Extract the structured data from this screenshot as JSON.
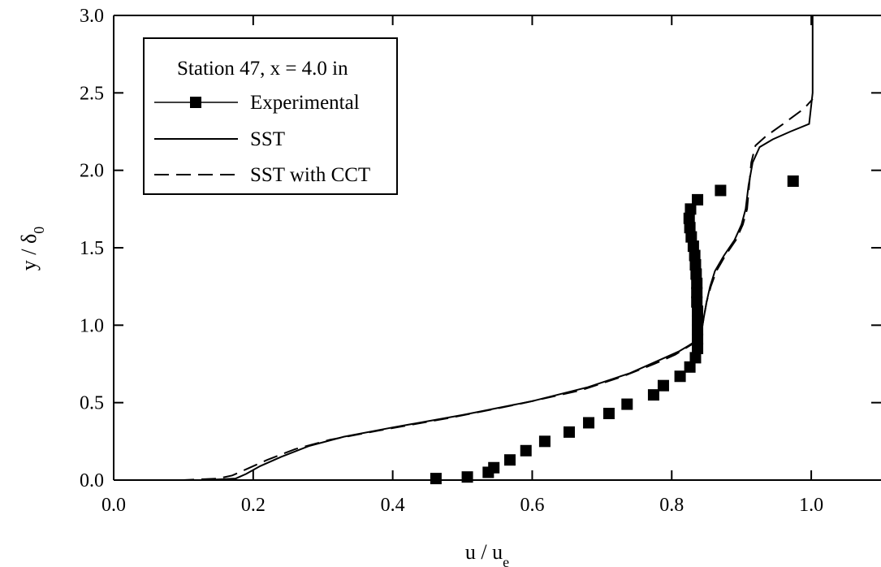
{
  "chart_data": {
    "type": "line",
    "title": "",
    "xlabel": "u / u_e",
    "ylabel": "y / δ_0",
    "xlim": [
      0.0,
      1.1
    ],
    "ylim": [
      0.0,
      3.0
    ],
    "x_ticks": [
      0.0,
      0.2,
      0.4,
      0.6,
      0.8,
      1.0
    ],
    "x_tick_labels": [
      "0.0",
      "0.2",
      "0.4",
      "0.6",
      "0.8",
      "1.0"
    ],
    "y_ticks": [
      0.0,
      0.5,
      1.0,
      1.5,
      2.0,
      2.5,
      3.0
    ],
    "y_tick_labels": [
      "0.0",
      "0.5",
      "1.0",
      "1.5",
      "2.0",
      "2.5",
      "3.0"
    ],
    "grid": false,
    "legend": {
      "placement": "top-left",
      "title": "Station 47, x = 4.0 in",
      "entries": [
        "Experimental",
        "SST",
        "SST with CCT"
      ]
    },
    "series": [
      {
        "name": "Experimental",
        "style": "square-markers",
        "points": [
          [
            0.462,
            0.01
          ],
          [
            0.507,
            0.02
          ],
          [
            0.537,
            0.05
          ],
          [
            0.545,
            0.08
          ],
          [
            0.568,
            0.13
          ],
          [
            0.591,
            0.19
          ],
          [
            0.618,
            0.25
          ],
          [
            0.653,
            0.31
          ],
          [
            0.681,
            0.37
          ],
          [
            0.71,
            0.43
          ],
          [
            0.736,
            0.49
          ],
          [
            0.774,
            0.55
          ],
          [
            0.788,
            0.61
          ],
          [
            0.812,
            0.67
          ],
          [
            0.826,
            0.73
          ],
          [
            0.834,
            0.79
          ],
          [
            0.837,
            0.85
          ],
          [
            0.837,
            0.91
          ],
          [
            0.837,
            0.97
          ],
          [
            0.837,
            1.03
          ],
          [
            0.837,
            1.09
          ],
          [
            0.836,
            1.15
          ],
          [
            0.836,
            1.21
          ],
          [
            0.836,
            1.27
          ],
          [
            0.835,
            1.33
          ],
          [
            0.834,
            1.39
          ],
          [
            0.833,
            1.45
          ],
          [
            0.831,
            1.51
          ],
          [
            0.828,
            1.57
          ],
          [
            0.826,
            1.63
          ],
          [
            0.825,
            1.69
          ],
          [
            0.827,
            1.75
          ],
          [
            0.837,
            1.81
          ],
          [
            0.87,
            1.87
          ],
          [
            0.974,
            1.93
          ]
        ]
      },
      {
        "name": "SST",
        "style": "solid",
        "points": [
          [
            0.0,
            0.0
          ],
          [
            0.13,
            0.0
          ],
          [
            0.175,
            0.01
          ],
          [
            0.19,
            0.04
          ],
          [
            0.21,
            0.09
          ],
          [
            0.24,
            0.15
          ],
          [
            0.28,
            0.22
          ],
          [
            0.33,
            0.28
          ],
          [
            0.4,
            0.34
          ],
          [
            0.5,
            0.42
          ],
          [
            0.6,
            0.51
          ],
          [
            0.68,
            0.6
          ],
          [
            0.74,
            0.69
          ],
          [
            0.78,
            0.77
          ],
          [
            0.81,
            0.83
          ],
          [
            0.825,
            0.87
          ],
          [
            0.835,
            0.9
          ],
          [
            0.84,
            0.93
          ],
          [
            0.843,
            0.97
          ],
          [
            0.846,
            1.05
          ],
          [
            0.85,
            1.15
          ],
          [
            0.855,
            1.25
          ],
          [
            0.862,
            1.35
          ],
          [
            0.875,
            1.45
          ],
          [
            0.89,
            1.55
          ],
          [
            0.9,
            1.65
          ],
          [
            0.906,
            1.75
          ],
          [
            0.91,
            1.9
          ],
          [
            0.916,
            2.05
          ],
          [
            0.926,
            2.15
          ],
          [
            0.945,
            2.2
          ],
          [
            0.97,
            2.25
          ],
          [
            0.997,
            2.3
          ],
          [
            1.002,
            2.5
          ],
          [
            1.002,
            3.0
          ]
        ]
      },
      {
        "name": "SST with CCT",
        "style": "dashed",
        "points": [
          [
            0.0,
            0.0
          ],
          [
            0.1,
            0.0
          ],
          [
            0.15,
            0.01
          ],
          [
            0.17,
            0.03
          ],
          [
            0.19,
            0.07
          ],
          [
            0.22,
            0.13
          ],
          [
            0.26,
            0.2
          ],
          [
            0.31,
            0.26
          ],
          [
            0.38,
            0.32
          ],
          [
            0.48,
            0.4
          ],
          [
            0.58,
            0.49
          ],
          [
            0.67,
            0.58
          ],
          [
            0.73,
            0.67
          ],
          [
            0.775,
            0.75
          ],
          [
            0.805,
            0.81
          ],
          [
            0.823,
            0.86
          ],
          [
            0.834,
            0.89
          ],
          [
            0.84,
            0.92
          ],
          [
            0.843,
            0.97
          ],
          [
            0.846,
            1.05
          ],
          [
            0.85,
            1.15
          ],
          [
            0.856,
            1.25
          ],
          [
            0.864,
            1.35
          ],
          [
            0.877,
            1.45
          ],
          [
            0.892,
            1.55
          ],
          [
            0.902,
            1.65
          ],
          [
            0.908,
            1.75
          ],
          [
            0.911,
            1.9
          ],
          [
            0.914,
            2.05
          ],
          [
            0.92,
            2.16
          ],
          [
            0.935,
            2.22
          ],
          [
            0.96,
            2.3
          ],
          [
            0.99,
            2.4
          ],
          [
            1.002,
            2.46
          ]
        ]
      }
    ]
  }
}
